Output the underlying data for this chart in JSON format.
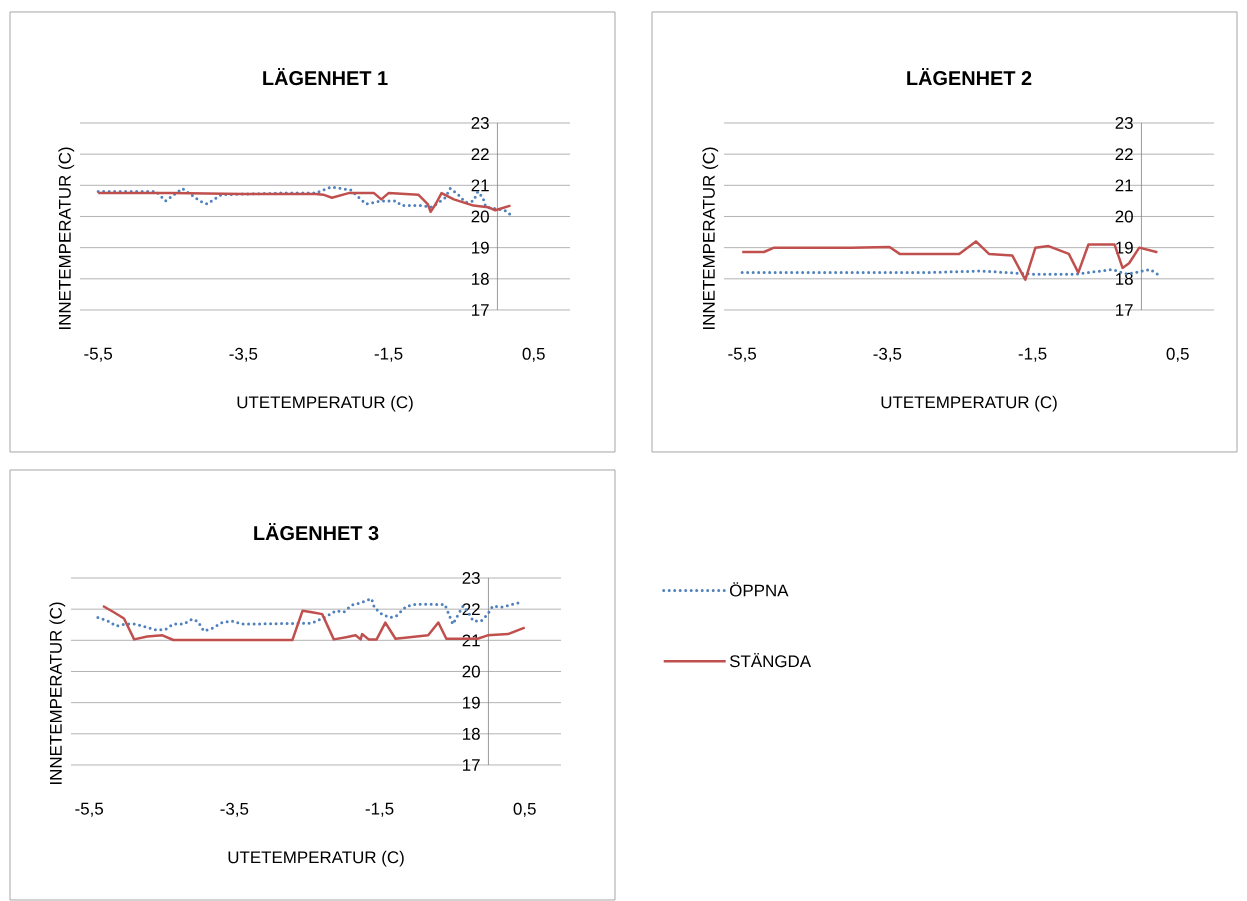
{
  "chart_data": [
    {
      "type": "line",
      "title": "LÄGENHET 1",
      "xlabel": "UTETEMPERATUR (C)",
      "ylabel": "INNETEMPERATUR (C)",
      "xlim": [
        -5.75,
        1
      ],
      "ylim": [
        17,
        23
      ],
      "xticks": [
        {
          "value": -5.5,
          "label": "-5,5"
        },
        {
          "value": -3.5,
          "label": "-3,5"
        },
        {
          "value": -1.5,
          "label": "-1,5"
        },
        {
          "value": 0.5,
          "label": "0,5"
        }
      ],
      "yticks": [
        17,
        18,
        19,
        20,
        21,
        22,
        23
      ],
      "grid": "y",
      "legend": false,
      "series": [
        {
          "color": "#4f81bd",
          "line_style": "dotted",
          "x": [
            -5.5,
            -5.0,
            -4.7,
            -4.57,
            -4.34,
            -4.1,
            -4.0,
            -3.8,
            -3.0,
            -2.5,
            -2.29,
            -2.02,
            -1.81,
            -1.6,
            -1.4,
            -1.32,
            -1.05,
            -0.9,
            -0.72,
            -0.65,
            -0.54,
            -0.44,
            -0.33,
            -0.27,
            -0.2,
            -0.16,
            -0.03,
            0.1,
            0.21
          ],
          "values": [
            20.8,
            20.8,
            20.8,
            20.5,
            20.9,
            20.5,
            20.4,
            20.7,
            20.75,
            20.75,
            20.95,
            20.85,
            20.4,
            20.5,
            20.5,
            20.35,
            20.35,
            20.3,
            20.6,
            20.9,
            20.7,
            20.45,
            20.5,
            20.8,
            20.6,
            20.3,
            20.25,
            20.2,
            20.0
          ]
        },
        {
          "color": "#c0504d",
          "line_style": "solid",
          "x": [
            -5.5,
            -4.5,
            -3.5,
            -2.5,
            -2.4,
            -2.28,
            -2.05,
            -1.7,
            -1.6,
            -1.5,
            -1.09,
            -0.96,
            -0.92,
            -0.85,
            -0.77,
            -0.6,
            -0.33,
            -0.13,
            -0.03,
            0.18
          ],
          "values": [
            20.75,
            20.75,
            20.72,
            20.72,
            20.7,
            20.6,
            20.75,
            20.75,
            20.55,
            20.75,
            20.7,
            20.4,
            20.15,
            20.4,
            20.75,
            20.55,
            20.35,
            20.3,
            20.2,
            20.35
          ]
        }
      ]
    },
    {
      "type": "line",
      "title": "LÄGENHET 2",
      "xlabel": "UTETEMPERATUR (C)",
      "ylabel": "INNETEMPERATUR (C)",
      "xlim": [
        -5.75,
        1
      ],
      "ylim": [
        17,
        23
      ],
      "xticks": [
        {
          "value": -5.5,
          "label": "-5,5"
        },
        {
          "value": -3.5,
          "label": "-3,5"
        },
        {
          "value": -1.5,
          "label": "-1,5"
        },
        {
          "value": 0.5,
          "label": "0,5"
        }
      ],
      "yticks": [
        17,
        18,
        19,
        20,
        21,
        22,
        23
      ],
      "grid": "y",
      "legend": false,
      "series": [
        {
          "color": "#4f81bd",
          "line_style": "dotted",
          "x": [
            -5.5,
            -4.0,
            -3.0,
            -2.2,
            -1.5,
            -0.9,
            -0.4,
            -0.2,
            0.12,
            0.22
          ],
          "values": [
            18.2,
            18.2,
            18.2,
            18.25,
            18.15,
            18.15,
            18.3,
            18.15,
            18.3,
            18.15
          ]
        },
        {
          "color": "#c0504d",
          "line_style": "solid",
          "x": [
            -5.5,
            -5.2,
            -5.06,
            -4.0,
            -3.47,
            -3.33,
            -2.51,
            -2.28,
            -2.1,
            -1.78,
            -1.6,
            -1.46,
            -1.28,
            -1.0,
            -0.87,
            -0.73,
            -0.37,
            -0.26,
            -0.17,
            -0.03,
            0.22
          ],
          "values": [
            18.86,
            18.86,
            19.0,
            19.0,
            19.02,
            18.8,
            18.8,
            19.2,
            18.8,
            18.75,
            17.97,
            19.0,
            19.05,
            18.8,
            18.2,
            19.1,
            19.1,
            18.35,
            18.5,
            19.0,
            18.85
          ]
        }
      ]
    },
    {
      "type": "line",
      "title": "LÄGENHET 3",
      "xlabel": "UTETEMPERATUR (C)",
      "ylabel": "INNETEMPERATUR (C)",
      "xlim": [
        -5.75,
        1
      ],
      "ylim": [
        17,
        23
      ],
      "xticks": [
        {
          "value": -5.5,
          "label": "-5,5"
        },
        {
          "value": -3.5,
          "label": "-3,5"
        },
        {
          "value": -1.5,
          "label": "-1,5"
        },
        {
          "value": 0.5,
          "label": "0,5"
        }
      ],
      "yticks": [
        17,
        18,
        19,
        20,
        21,
        22,
        23
      ],
      "grid": "y",
      "legend": "right",
      "series": [
        {
          "name": "ÖPPNA",
          "color": "#4f81bd",
          "line_style": "dotted",
          "x": [
            -5.38,
            -5.24,
            -5.13,
            -5.0,
            -4.86,
            -4.72,
            -4.58,
            -4.45,
            -4.34,
            -4.2,
            -4.08,
            -4.0,
            -3.92,
            -3.8,
            -3.67,
            -3.53,
            -3.4,
            -2.43,
            -2.22,
            -2.1,
            -1.99,
            -1.88,
            -1.74,
            -1.61,
            -1.57,
            -1.47,
            -1.36,
            -1.27,
            -1.13,
            -0.99,
            -0.6,
            -0.49,
            -0.35,
            -0.28,
            -0.21,
            -0.1,
            -0.01,
            0.06,
            0.2,
            0.34,
            0.47
          ],
          "values": [
            21.73,
            21.62,
            21.46,
            21.52,
            21.52,
            21.43,
            21.33,
            21.35,
            21.52,
            21.52,
            21.68,
            21.6,
            21.3,
            21.39,
            21.57,
            21.62,
            21.52,
            21.55,
            21.78,
            21.95,
            21.91,
            22.13,
            22.22,
            22.34,
            22.05,
            21.84,
            21.73,
            21.78,
            22.09,
            22.16,
            22.15,
            21.52,
            22.1,
            21.9,
            21.62,
            21.62,
            21.84,
            22.1,
            22.07,
            22.16,
            22.24
          ]
        },
        {
          "name": "STÄNGDA",
          "color": "#c0504d",
          "line_style": "solid",
          "x": [
            -5.31,
            -5.16,
            -5.02,
            -4.88,
            -4.7,
            -4.49,
            -4.34,
            -2.7,
            -2.56,
            -2.43,
            -2.29,
            -2.13,
            -1.96,
            -1.83,
            -1.76,
            -1.74,
            -1.65,
            -1.54,
            -1.42,
            -1.28,
            -0.83,
            -0.69,
            -0.58,
            -0.15,
            -0.01,
            0.27,
            0.5
          ],
          "values": [
            22.1,
            21.9,
            21.7,
            21.03,
            21.12,
            21.16,
            21.01,
            21.01,
            21.95,
            21.9,
            21.84,
            21.03,
            21.1,
            21.16,
            21.03,
            21.2,
            21.03,
            21.03,
            21.57,
            21.05,
            21.16,
            21.57,
            21.05,
            21.05,
            21.16,
            21.2,
            21.41
          ]
        }
      ]
    }
  ]
}
